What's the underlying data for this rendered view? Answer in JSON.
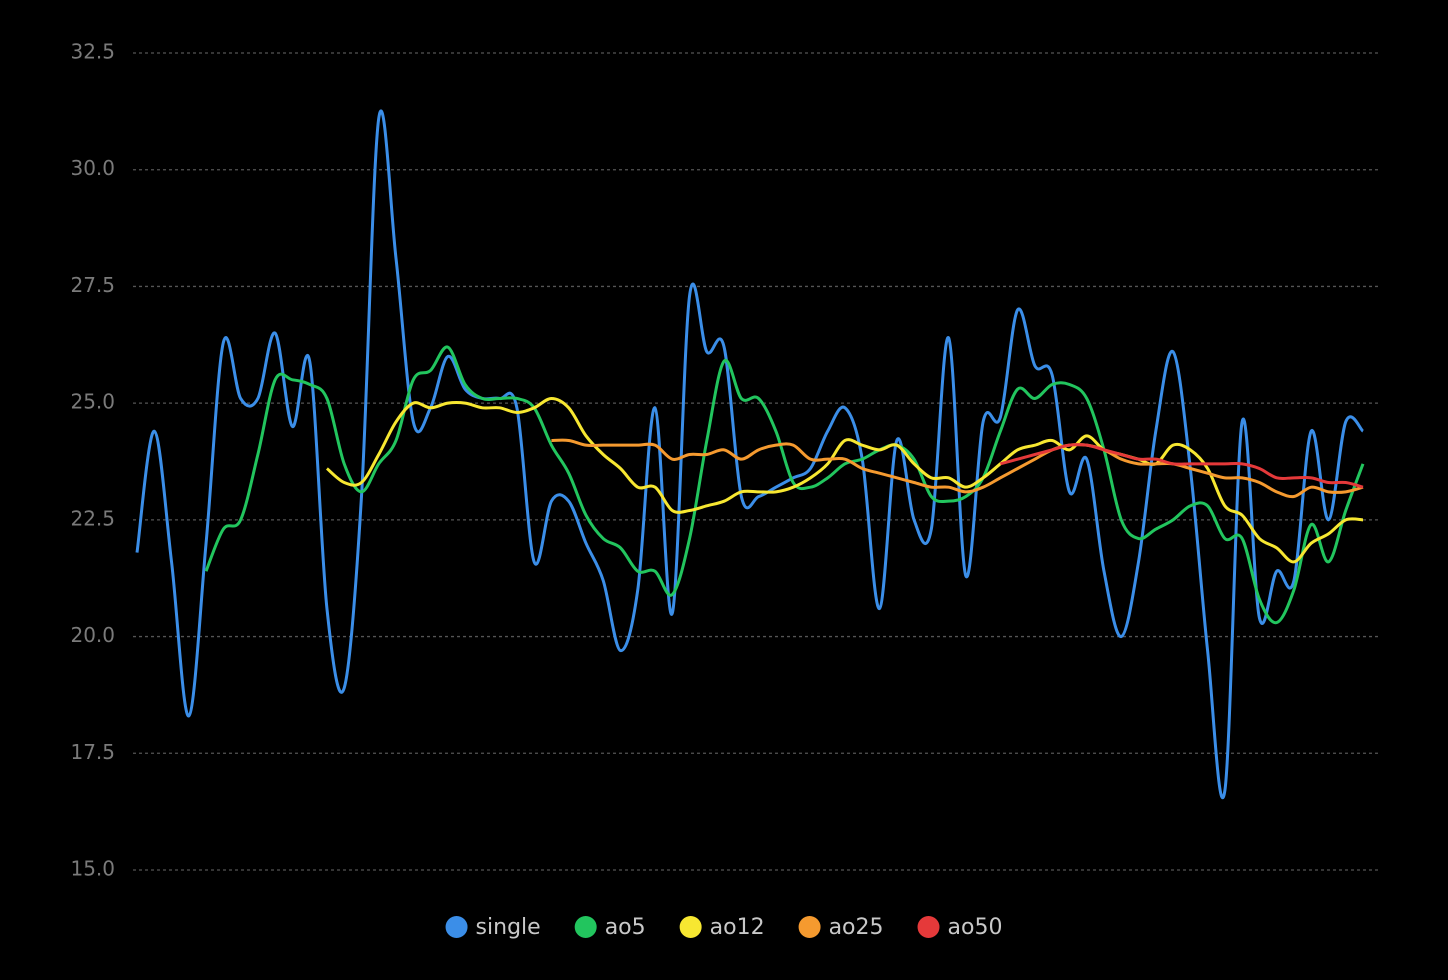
{
  "chart_data": {
    "type": "line",
    "categories": [
      null,
      null,
      null,
      null,
      null,
      null,
      null,
      null,
      null,
      null,
      null,
      null,
      null,
      null,
      null,
      null,
      null,
      null,
      null,
      null,
      null,
      null,
      null,
      null,
      null,
      null,
      null,
      null,
      null,
      null,
      null,
      null,
      null,
      null,
      null,
      null,
      null,
      null,
      null,
      null,
      null,
      null,
      null,
      null,
      null,
      null,
      null,
      null,
      null,
      null,
      null,
      null,
      null,
      null,
      null,
      null,
      null,
      null,
      null,
      null,
      null,
      null,
      null,
      null,
      null,
      null,
      null,
      null,
      null,
      null,
      null,
      null
    ],
    "series": [
      {
        "name": "single",
        "color": "#3b8ee8",
        "values": [
          21.8,
          24.4,
          21.6,
          18.3,
          22.0,
          26.3,
          25.1,
          25.1,
          26.5,
          24.5,
          25.9,
          20.6,
          18.9,
          23.0,
          31.1,
          28.1,
          24.6,
          24.9,
          26.0,
          25.3,
          25.1,
          25.1,
          24.9,
          21.6,
          22.9,
          22.9,
          22.0,
          21.2,
          19.7,
          21.0,
          24.9,
          20.5,
          27.3,
          26.1,
          26.2,
          23.0,
          23.0,
          23.2,
          23.4,
          23.6,
          24.4,
          24.9,
          23.8,
          20.6,
          24.2,
          22.5,
          22.3,
          26.4,
          21.3,
          24.6,
          24.7,
          27.0,
          25.8,
          25.6,
          23.1,
          23.8,
          21.4,
          20.0,
          21.6,
          24.4,
          26.1,
          23.6,
          19.7,
          16.7,
          24.6,
          20.4,
          21.4,
          21.2,
          24.4,
          22.5,
          24.6,
          24.4
        ]
      },
      {
        "name": "ao5",
        "color": "#22c55e",
        "values": [
          null,
          null,
          null,
          null,
          21.4,
          22.3,
          22.5,
          23.9,
          25.5,
          25.5,
          25.4,
          25.1,
          23.7,
          23.1,
          23.7,
          24.2,
          25.5,
          25.7,
          26.2,
          25.4,
          25.1,
          25.1,
          25.1,
          24.9,
          24.1,
          23.5,
          22.6,
          22.1,
          21.9,
          21.4,
          21.4,
          20.9,
          22.1,
          24.2,
          25.9,
          25.1,
          25.1,
          24.4,
          23.3,
          23.2,
          23.4,
          23.7,
          23.8,
          24.0,
          24.1,
          23.8,
          23.0,
          22.9,
          23.0,
          23.4,
          24.4,
          25.3,
          25.1,
          25.4,
          25.4,
          25.1,
          24.0,
          22.5,
          22.1,
          22.3,
          22.5,
          22.8,
          22.8,
          22.1,
          22.1,
          20.8,
          20.3,
          21.0,
          22.4,
          21.6,
          22.7,
          23.7
        ]
      },
      {
        "name": "ao12",
        "color": "#f7e731",
        "values": [
          null,
          null,
          null,
          null,
          null,
          null,
          null,
          null,
          null,
          null,
          null,
          23.6,
          23.3,
          23.3,
          23.9,
          24.6,
          25.0,
          24.9,
          25.0,
          25.0,
          24.9,
          24.9,
          24.8,
          24.9,
          25.1,
          24.9,
          24.3,
          23.9,
          23.6,
          23.2,
          23.2,
          22.7,
          22.7,
          22.8,
          22.9,
          23.1,
          23.1,
          23.1,
          23.2,
          23.4,
          23.7,
          24.2,
          24.1,
          24.0,
          24.1,
          23.7,
          23.4,
          23.4,
          23.2,
          23.4,
          23.7,
          24.0,
          24.1,
          24.2,
          24.0,
          24.3,
          24.0,
          23.9,
          23.8,
          23.7,
          24.1,
          24.0,
          23.6,
          22.8,
          22.6,
          22.1,
          21.9,
          21.6,
          22.0,
          22.2,
          22.5,
          22.5
        ]
      },
      {
        "name": "ao25",
        "color": "#f59a2f",
        "values": [
          null,
          null,
          null,
          null,
          null,
          null,
          null,
          null,
          null,
          null,
          null,
          null,
          null,
          null,
          null,
          null,
          null,
          null,
          null,
          null,
          null,
          null,
          null,
          null,
          24.2,
          24.2,
          24.1,
          24.1,
          24.1,
          24.1,
          24.1,
          23.8,
          23.9,
          23.9,
          24.0,
          23.8,
          24.0,
          24.1,
          24.1,
          23.8,
          23.8,
          23.8,
          23.6,
          23.5,
          23.4,
          23.3,
          23.2,
          23.2,
          23.1,
          23.2,
          23.4,
          23.6,
          23.8,
          24.0,
          24.1,
          24.1,
          24.0,
          23.8,
          23.7,
          23.7,
          23.7,
          23.6,
          23.5,
          23.4,
          23.4,
          23.3,
          23.1,
          23.0,
          23.2,
          23.1,
          23.1,
          23.2
        ]
      },
      {
        "name": "ao50",
        "color": "#e5393a",
        "values": [
          null,
          null,
          null,
          null,
          null,
          null,
          null,
          null,
          null,
          null,
          null,
          null,
          null,
          null,
          null,
          null,
          null,
          null,
          null,
          null,
          null,
          null,
          null,
          null,
          null,
          null,
          null,
          null,
          null,
          null,
          null,
          null,
          null,
          null,
          null,
          null,
          null,
          null,
          null,
          null,
          null,
          null,
          null,
          null,
          null,
          null,
          null,
          null,
          null,
          null,
          23.7,
          23.8,
          23.9,
          24.0,
          24.1,
          24.1,
          24.0,
          23.9,
          23.8,
          23.8,
          23.7,
          23.7,
          23.7,
          23.7,
          23.7,
          23.6,
          23.4,
          23.4,
          23.4,
          23.3,
          23.3,
          23.2
        ]
      }
    ],
    "ylim": [
      15,
      32.5
    ],
    "yticks": [
      {
        "value": 15,
        "label": "15.0"
      },
      17.5,
      {
        "value": 20,
        "label": "20.0"
      },
      22.5,
      {
        "value": 25,
        "label": "25.0"
      },
      27.5,
      {
        "value": 30,
        "label": "30.0"
      },
      32.5
    ],
    "grid": true
  }
}
